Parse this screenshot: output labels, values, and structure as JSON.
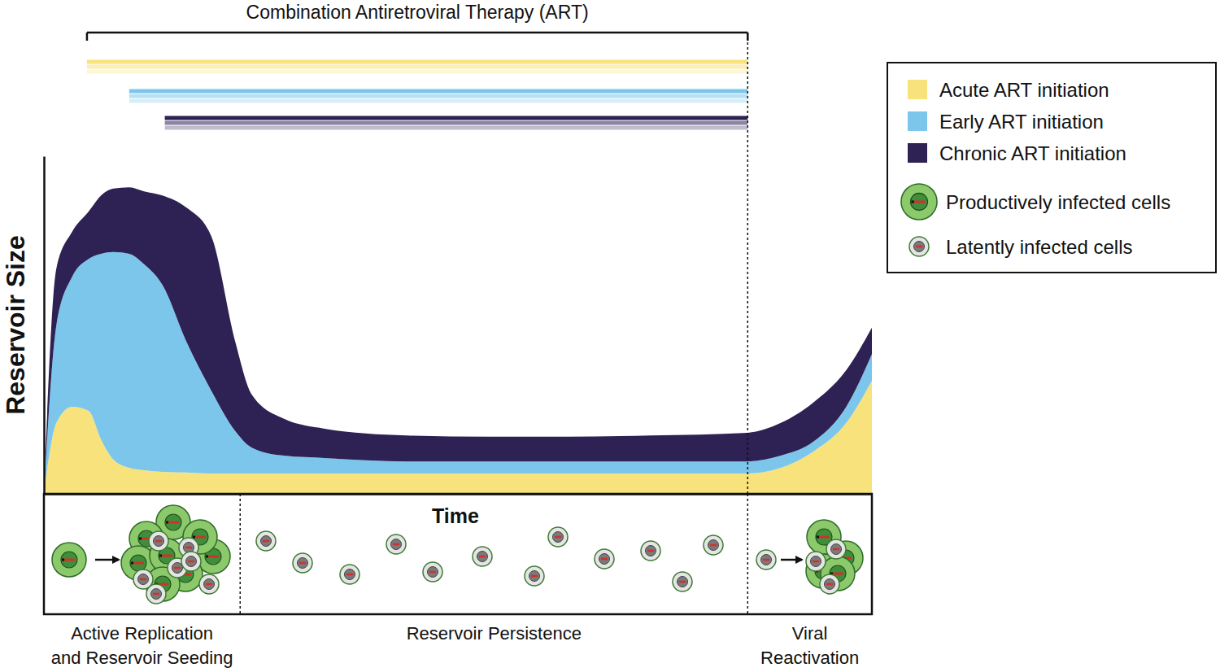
{
  "chart_data": {
    "type": "area",
    "stacked": true,
    "grid": false,
    "tick_labels": false,
    "legend": "right",
    "x_label": "Time",
    "y_label": "Reservoir Size",
    "xlim": [
      0,
      100
    ],
    "ylim": [
      0,
      100
    ],
    "x": [
      0,
      1.5,
      3.4,
      5.4,
      6.9,
      8.4,
      10.3,
      12.1,
      14.3,
      17.2,
      20.2,
      23.1,
      25.1,
      29.0,
      33.9,
      43.8,
      53.6,
      63.4,
      73.3,
      85.0,
      89.0,
      92.9,
      96.9,
      100
    ],
    "series": [
      {
        "name": "Acute ART initiation",
        "color": "#f7e27c",
        "art_start": 5.2,
        "values": [
          0,
          21.0,
          25.8,
          24.6,
          16.1,
          10.1,
          7.7,
          7.0,
          6.5,
          6.3,
          6.0,
          6.0,
          6.0,
          6.0,
          6.0,
          6.0,
          6.0,
          6.0,
          6.0,
          6.0,
          7.7,
          12.5,
          21.0,
          33.5
        ]
      },
      {
        "name": "Early ART initiation",
        "color": "#7cc6ec",
        "art_start": 10.3,
        "values": [
          0,
          28.9,
          38.5,
          45.0,
          55.0,
          61.5,
          63.4,
          61.0,
          55.4,
          38.8,
          24.6,
          12.6,
          7.7,
          5.3,
          4.6,
          3.6,
          3.6,
          3.6,
          3.6,
          3.6,
          3.6,
          2.9,
          4.8,
          7.9
        ]
      },
      {
        "name": "Chronic ART initiation",
        "color": "#2e2153",
        "art_start": 14.6,
        "values": [
          0,
          16.8,
          13.3,
          14.0,
          17.3,
          18.8,
          19.7,
          21.6,
          26.5,
          39.7,
          45.8,
          26.5,
          15.7,
          10.9,
          8.7,
          7.7,
          7.3,
          7.3,
          7.7,
          8.5,
          9.7,
          11.6,
          10.8,
          7.8
        ]
      }
    ],
    "art": {
      "label": "Combination Antiretroviral Therapy (ART)",
      "start": 5.2,
      "end": 85.0
    },
    "cell_types": [
      "Productively infected cells",
      "Latently infected cells"
    ],
    "phases": [
      {
        "label": [
          "Active Replication",
          "and Reservoir Seeding"
        ],
        "start": 0,
        "end": 23.7
      },
      {
        "label": [
          "Reservoir Persistence"
        ],
        "start": 23.7,
        "end": 85.0
      },
      {
        "label": [
          "Viral",
          "Reactivation"
        ],
        "start": 85.0,
        "end": 100
      }
    ]
  }
}
